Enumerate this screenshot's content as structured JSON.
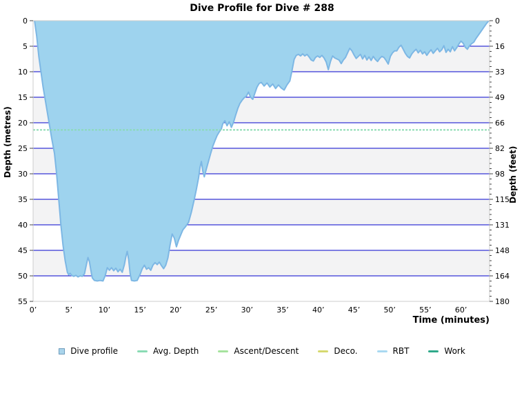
{
  "title": "Dive Profile for Dive # 288",
  "chart_data": {
    "type": "area",
    "title": "Dive Profile for Dive # 288",
    "xlabel": "Time (minutes)",
    "ylabel_left": "Depth (metres)",
    "ylabel_right": "Depth (feet)",
    "xlim": [
      0,
      64
    ],
    "ylim_metres": [
      0,
      55
    ],
    "grid": true,
    "x_tick_values": [
      0,
      5,
      10,
      15,
      20,
      25,
      30,
      35,
      40,
      45,
      50,
      55,
      60
    ],
    "x_tick_labels": [
      "0’",
      "5’",
      "10’",
      "15’",
      "20’",
      "25’",
      "30’",
      "35’",
      "40’",
      "45’",
      "50’",
      "55’",
      "60’"
    ],
    "y_tick_values_metres": [
      0,
      5,
      10,
      15,
      20,
      25,
      30,
      35,
      40,
      45,
      50,
      55
    ],
    "y_tick_labels_metres": [
      "0",
      "5",
      "10",
      "15",
      "20",
      "25",
      "30",
      "35",
      "40",
      "45",
      "50",
      "55"
    ],
    "y_tick_labels_feet": [
      "0",
      "16",
      "33",
      "49",
      "66",
      "82",
      "98",
      "115",
      "131",
      "148",
      "164",
      "180"
    ],
    "minor_tick_step_metres": 1,
    "gridline_color": "#0000cc",
    "band_color": "#f3f3f4",
    "border_color": "#cccccc",
    "avg_depth_metres": 21.4,
    "avg_depth_color": "#8adbb4",
    "series": [
      {
        "name": "Dive profile",
        "fill": "#9ed3ee",
        "stroke": "#7db7e4",
        "points_time_depth": [
          [
            0.2,
            0
          ],
          [
            0.5,
            3
          ],
          [
            0.8,
            7
          ],
          [
            1.1,
            10
          ],
          [
            1.4,
            13
          ],
          [
            1.7,
            15.5
          ],
          [
            2,
            18
          ],
          [
            2.3,
            20.5
          ],
          [
            2.6,
            23
          ],
          [
            3,
            26
          ],
          [
            3.3,
            30
          ],
          [
            3.6,
            35
          ],
          [
            3.9,
            40
          ],
          [
            4.2,
            44
          ],
          [
            4.5,
            47
          ],
          [
            4.8,
            49.3
          ],
          [
            5,
            49.8
          ],
          [
            5.2,
            49.5
          ],
          [
            5.4,
            49.9
          ],
          [
            5.7,
            50.1
          ],
          [
            6,
            49.9
          ],
          [
            6.3,
            50.2
          ],
          [
            6.6,
            50
          ],
          [
            6.9,
            50.1
          ],
          [
            7.2,
            49.6
          ],
          [
            7.5,
            47.6
          ],
          [
            7.7,
            46.4
          ],
          [
            7.9,
            47.2
          ],
          [
            8.1,
            48.9
          ],
          [
            8.3,
            50.4
          ],
          [
            8.6,
            50.9
          ],
          [
            9,
            51
          ],
          [
            9.4,
            50.9
          ],
          [
            9.8,
            51
          ],
          [
            10.1,
            50
          ],
          [
            10.4,
            48.4
          ],
          [
            10.7,
            48.9
          ],
          [
            11,
            48.4
          ],
          [
            11.3,
            49
          ],
          [
            11.6,
            48.5
          ],
          [
            11.9,
            49.2
          ],
          [
            12.2,
            48.7
          ],
          [
            12.5,
            49.3
          ],
          [
            12.8,
            47.8
          ],
          [
            13,
            46.3
          ],
          [
            13.2,
            45.2
          ],
          [
            13.4,
            46.8
          ],
          [
            13.6,
            49.5
          ],
          [
            13.8,
            50.9
          ],
          [
            14.2,
            51
          ],
          [
            14.6,
            50.9
          ],
          [
            15,
            49.7
          ],
          [
            15.3,
            48.6
          ],
          [
            15.6,
            47.9
          ],
          [
            15.9,
            48.7
          ],
          [
            16.2,
            48.4
          ],
          [
            16.5,
            48.9
          ],
          [
            16.8,
            47.9
          ],
          [
            17.1,
            47.4
          ],
          [
            17.4,
            47.8
          ],
          [
            17.7,
            47.3
          ],
          [
            18,
            48
          ],
          [
            18.3,
            48.6
          ],
          [
            18.6,
            47.9
          ],
          [
            18.9,
            46.5
          ],
          [
            19.2,
            44
          ],
          [
            19.5,
            41.8
          ],
          [
            19.8,
            42.6
          ],
          [
            20.1,
            44.3
          ],
          [
            20.4,
            43
          ],
          [
            20.7,
            42
          ],
          [
            21,
            41
          ],
          [
            21.4,
            40.3
          ],
          [
            21.8,
            39.5
          ],
          [
            22.2,
            37.5
          ],
          [
            22.6,
            35
          ],
          [
            22.9,
            33
          ],
          [
            23.2,
            30.8
          ],
          [
            23.4,
            28.8
          ],
          [
            23.6,
            27.6
          ],
          [
            23.8,
            29.5
          ],
          [
            24,
            30.6
          ],
          [
            24.3,
            29
          ],
          [
            24.6,
            27.5
          ],
          [
            24.9,
            26
          ],
          [
            25.2,
            24.6
          ],
          [
            25.5,
            23.5
          ],
          [
            25.8,
            22.5
          ],
          [
            26.1,
            21.8
          ],
          [
            26.4,
            21.2
          ],
          [
            26.6,
            20.2
          ],
          [
            26.9,
            19.6
          ],
          [
            27.2,
            20.6
          ],
          [
            27.5,
            19.8
          ],
          [
            27.8,
            20.9
          ],
          [
            28.1,
            19.9
          ],
          [
            28.4,
            18.5
          ],
          [
            28.7,
            17.2
          ],
          [
            29,
            16.2
          ],
          [
            29.3,
            15.6
          ],
          [
            29.6,
            15.1
          ],
          [
            29.9,
            14.8
          ],
          [
            30.2,
            14
          ],
          [
            30.5,
            15
          ],
          [
            30.8,
            15.4
          ],
          [
            31.1,
            14.2
          ],
          [
            31.4,
            13
          ],
          [
            31.7,
            12.3
          ],
          [
            32,
            12.1
          ],
          [
            32.4,
            12.8
          ],
          [
            32.8,
            12.2
          ],
          [
            33.2,
            13
          ],
          [
            33.6,
            12.4
          ],
          [
            34,
            13.3
          ],
          [
            34.4,
            12.6
          ],
          [
            34.8,
            13.2
          ],
          [
            35.2,
            13.6
          ],
          [
            35.6,
            12.6
          ],
          [
            36,
            11.8
          ],
          [
            36.3,
            9.8
          ],
          [
            36.6,
            7.6
          ],
          [
            36.9,
            6.8
          ],
          [
            37.2,
            6.6
          ],
          [
            37.5,
            6.9
          ],
          [
            37.8,
            6.5
          ],
          [
            38.1,
            6.9
          ],
          [
            38.4,
            6.6
          ],
          [
            38.7,
            7.1
          ],
          [
            39,
            7.7
          ],
          [
            39.3,
            7.9
          ],
          [
            39.6,
            7.2
          ],
          [
            39.9,
            6.9
          ],
          [
            40.2,
            7.2
          ],
          [
            40.5,
            6.8
          ],
          [
            40.8,
            7.3
          ],
          [
            41.1,
            8.1
          ],
          [
            41.4,
            9.6
          ],
          [
            41.7,
            8
          ],
          [
            42,
            6.9
          ],
          [
            42.3,
            7.3
          ],
          [
            42.9,
            7.7
          ],
          [
            43.2,
            8.4
          ],
          [
            43.5,
            7.7
          ],
          [
            43.8,
            7.2
          ],
          [
            44.1,
            6.3
          ],
          [
            44.4,
            5.4
          ],
          [
            44.7,
            5.9
          ],
          [
            45,
            6.7
          ],
          [
            45.3,
            7.4
          ],
          [
            45.6,
            7
          ],
          [
            45.9,
            6.6
          ],
          [
            46.2,
            7.5
          ],
          [
            46.5,
            6.8
          ],
          [
            46.8,
            7.7
          ],
          [
            47.1,
            7.1
          ],
          [
            47.4,
            7.8
          ],
          [
            47.7,
            7
          ],
          [
            48,
            7.6
          ],
          [
            48.3,
            8
          ],
          [
            48.6,
            7.4
          ],
          [
            48.9,
            7
          ],
          [
            49.2,
            7.2
          ],
          [
            49.5,
            7.8
          ],
          [
            49.8,
            8.5
          ],
          [
            50.1,
            7
          ],
          [
            50.4,
            6.3
          ],
          [
            50.7,
            5.9
          ],
          [
            51,
            5.9
          ],
          [
            51.3,
            5.2
          ],
          [
            51.6,
            4.8
          ],
          [
            51.9,
            5.6
          ],
          [
            52.2,
            6.4
          ],
          [
            52.5,
            7
          ],
          [
            52.8,
            7.3
          ],
          [
            53.1,
            6.5
          ],
          [
            53.4,
            6
          ],
          [
            53.7,
            5.6
          ],
          [
            54,
            6.3
          ],
          [
            54.3,
            5.8
          ],
          [
            54.6,
            6.5
          ],
          [
            54.9,
            6.1
          ],
          [
            55.2,
            6.8
          ],
          [
            55.5,
            6.2
          ],
          [
            55.8,
            5.7
          ],
          [
            56.1,
            6.4
          ],
          [
            56.4,
            5.9
          ],
          [
            56.7,
            5.4
          ],
          [
            57,
            6.1
          ],
          [
            57.3,
            5.7
          ],
          [
            57.6,
            4.9
          ],
          [
            57.9,
            6.2
          ],
          [
            58.2,
            5.6
          ],
          [
            58.5,
            6.1
          ],
          [
            58.8,
            5.1
          ],
          [
            59.1,
            5.9
          ],
          [
            59.4,
            5.3
          ],
          [
            59.7,
            4.6
          ],
          [
            60,
            4
          ],
          [
            60.3,
            4.4
          ],
          [
            60.6,
            5.2
          ],
          [
            60.9,
            5.6
          ],
          [
            61.2,
            4.9
          ],
          [
            61.5,
            4.5
          ],
          [
            61.8,
            4.2
          ],
          [
            62.1,
            3.5
          ],
          [
            62.4,
            2.9
          ],
          [
            62.7,
            2.3
          ],
          [
            63,
            1.7
          ],
          [
            63.3,
            1.1
          ],
          [
            63.6,
            0.5
          ],
          [
            63.9,
            0
          ]
        ]
      }
    ],
    "legend_position": "bottom"
  },
  "legend": [
    {
      "label": "Dive profile",
      "swatch": "square",
      "color": "#a9d4eb",
      "border": "#6e9cbc"
    },
    {
      "label": "Avg. Depth",
      "swatch": "line",
      "color": "#8adbb4"
    },
    {
      "label": "Ascent/Descent",
      "swatch": "line",
      "color": "#a6e39e"
    },
    {
      "label": "Deco.",
      "swatch": "line",
      "color": "#d6d96f"
    },
    {
      "label": "RBT",
      "swatch": "line",
      "color": "#a9d9f1"
    },
    {
      "label": "Work",
      "swatch": "line",
      "color": "#2fa98a"
    }
  ]
}
